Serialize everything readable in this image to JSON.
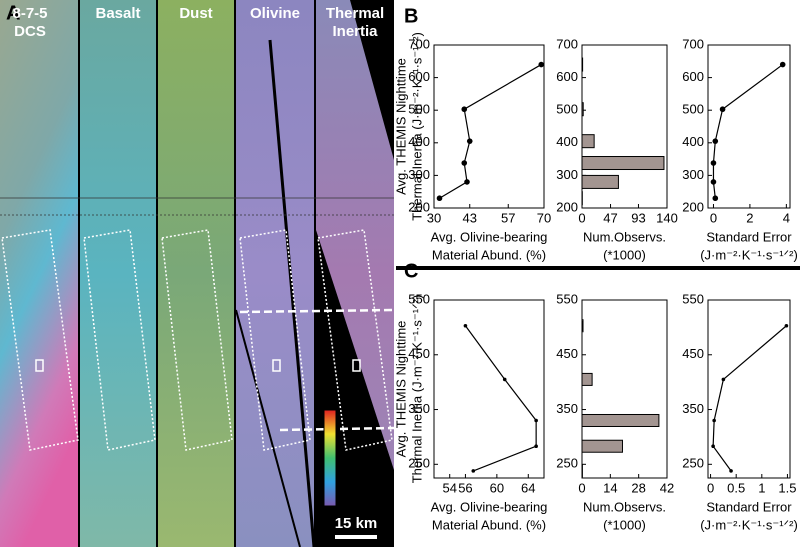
{
  "panel_a": {
    "label": "A",
    "columns": [
      [
        "8-7-5",
        "DCS"
      ],
      [
        "Basalt"
      ],
      [
        "Dust"
      ],
      [
        "Olivine"
      ],
      [
        "Thermal",
        "Inertia"
      ]
    ],
    "scale": "15 km"
  },
  "chart_data": [
    {
      "type": "line",
      "label": "B",
      "ylabel": [
        "Avg. THEMIS Nighttime",
        "Thermal Inertia (J·m⁻²·K⁻¹·s⁻¹ᐟ²)"
      ],
      "xlabel": [
        "Avg. Olivine-bearing",
        "Material Abund. (%)"
      ],
      "x": [
        32,
        42,
        41,
        43,
        41,
        69
      ],
      "values": [
        230,
        280,
        338,
        405,
        503,
        640
      ],
      "color": "#000000",
      "xlim": [
        30,
        70
      ],
      "xticks": [
        30,
        43,
        57,
        70
      ],
      "ylim": [
        200,
        700
      ],
      "yticks": [
        200,
        300,
        400,
        500,
        600,
        700
      ]
    },
    {
      "type": "bar",
      "xlabel": [
        "Num.Observs.",
        "(*1000)"
      ],
      "y": [
        230,
        280,
        338,
        405,
        503,
        640
      ],
      "values": [
        0.5,
        60,
        135,
        20,
        2,
        1
      ],
      "color": "#a39591",
      "xlim": [
        0,
        140
      ],
      "xticks": [
        0,
        47,
        93,
        140
      ],
      "ylim": [
        200,
        700
      ],
      "yticks": [
        200,
        300,
        400,
        500,
        600,
        700
      ]
    },
    {
      "type": "line",
      "xlabel": [
        "Standard Error",
        "(J·m⁻²·K⁻¹·s⁻¹ᐟ²)"
      ],
      "x": [
        0.1,
        0,
        0,
        0.1,
        0.5,
        3.8
      ],
      "values": [
        230,
        280,
        338,
        405,
        503,
        640
      ],
      "color": "#000000",
      "xlim": [
        -0.3,
        4.2
      ],
      "xticks": [
        0,
        2,
        4
      ],
      "ylim": [
        200,
        700
      ],
      "yticks": [
        200,
        300,
        400,
        500,
        600,
        700
      ]
    },
    {
      "type": "line",
      "label": "C",
      "ylabel": [
        "Avg. THEMIS Nighttime",
        "Thermal Inertia (J·m⁻²·K⁻¹·s⁻¹ᐟ²)"
      ],
      "xlabel": [
        "Avg. Olivine-bearing",
        "Material Abund. (%)"
      ],
      "x": [
        57,
        65,
        65,
        61,
        56
      ],
      "values": [
        238,
        283,
        330,
        405,
        503
      ],
      "color": "#000000",
      "xlim": [
        52,
        66
      ],
      "xticks": [
        54,
        56,
        60,
        64
      ],
      "ylim": [
        225,
        550
      ],
      "yticks": [
        250,
        350,
        450,
        550
      ]
    },
    {
      "type": "bar",
      "xlabel": [
        "Num.Observs.",
        "(*1000)"
      ],
      "y": [
        238,
        283,
        330,
        405,
        503
      ],
      "values": [
        0.2,
        20,
        38,
        5,
        0.5
      ],
      "color": "#a39591",
      "xlim": [
        0,
        42
      ],
      "xticks": [
        0,
        14,
        28,
        42
      ],
      "ylim": [
        225,
        550
      ],
      "yticks": [
        250,
        350,
        450,
        550
      ]
    },
    {
      "type": "line",
      "xlabel": [
        "Standard Error",
        "(J·m⁻²·K⁻¹·s⁻¹ᐟ²)"
      ],
      "x": [
        0.4,
        0.05,
        0.07,
        0.25,
        1.48
      ],
      "values": [
        238,
        283,
        330,
        405,
        503
      ],
      "color": "#000000",
      "xlim": [
        -0.05,
        1.55
      ],
      "xticks": [
        0,
        0.5,
        1,
        1.5
      ],
      "ylim": [
        225,
        550
      ],
      "yticks": [
        250,
        350,
        450,
        550
      ]
    }
  ]
}
